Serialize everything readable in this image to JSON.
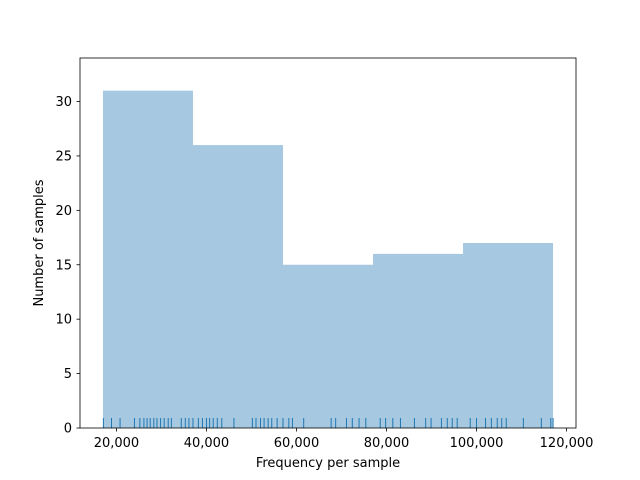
{
  "chart_data": {
    "type": "bar",
    "title": "",
    "xlabel": "Frequency per sample",
    "ylabel": "Number of samples",
    "xlim": [
      11900,
      122100
    ],
    "ylim": [
      0,
      34
    ],
    "grid": false,
    "bins": [
      {
        "x0": 17000,
        "x1": 37000,
        "count": 31
      },
      {
        "x0": 37000,
        "x1": 57000,
        "count": 26
      },
      {
        "x0": 57000,
        "x1": 77000,
        "count": 15
      },
      {
        "x0": 77000,
        "x1": 97000,
        "count": 16
      },
      {
        "x0": 97000,
        "x1": 117000,
        "count": 17
      }
    ],
    "rug": [
      17100,
      18900,
      20800,
      24000,
      25200,
      26100,
      26800,
      27500,
      28300,
      29000,
      29800,
      30600,
      31500,
      32200,
      34400,
      35300,
      36100,
      37000,
      38200,
      39100,
      40000,
      40700,
      41500,
      42400,
      43400,
      46100,
      50200,
      51000,
      52000,
      52800,
      53700,
      54500,
      55700,
      57000,
      58300,
      59100,
      61600,
      67700,
      68700,
      71100,
      72400,
      73900,
      75400,
      78600,
      79800,
      81400,
      83100,
      86200,
      88700,
      89900,
      92200,
      93500,
      94600,
      95700,
      98600,
      100000,
      102000,
      103300,
      104600,
      105600,
      106600,
      110400,
      114400,
      116500,
      117000
    ],
    "xticks": [
      20000,
      40000,
      60000,
      80000,
      100000,
      120000
    ],
    "xtick_labels": [
      "20,000",
      "40,000",
      "60,000",
      "80,000",
      "100,000",
      "120,000"
    ],
    "yticks": [
      0,
      5,
      10,
      15,
      20,
      25,
      30
    ],
    "ytick_labels": [
      "0",
      "5",
      "10",
      "15",
      "20",
      "25",
      "30"
    ],
    "bar_color": "#a6c8e0",
    "rug_color": "#1f77b4"
  }
}
